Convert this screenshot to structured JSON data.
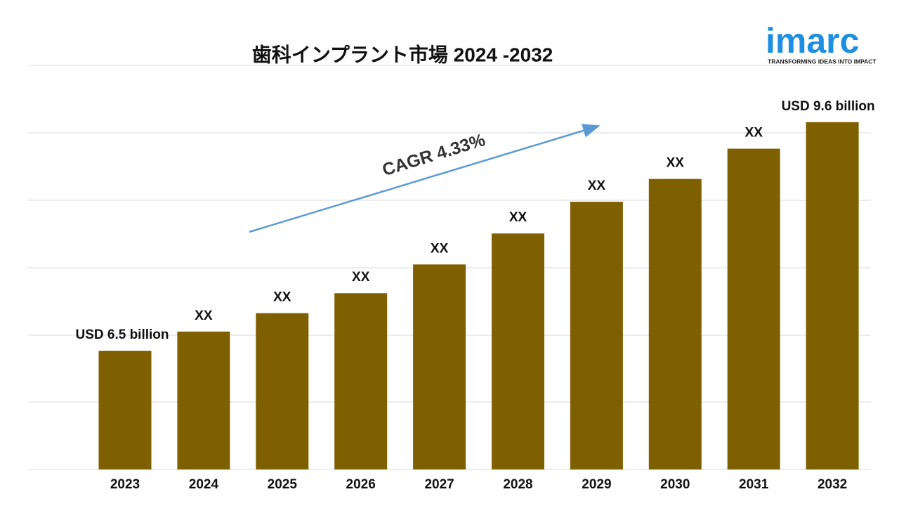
{
  "chart_data": {
    "type": "bar",
    "title": "歯科インプラント市場 2024 -2032",
    "categories": [
      "2023",
      "2024",
      "2025",
      "2026",
      "2027",
      "2028",
      "2029",
      "2030",
      "2031",
      "2032"
    ],
    "values": [
      6.5,
      6.76,
      7.01,
      7.28,
      7.67,
      8.09,
      8.52,
      8.83,
      9.24,
      9.6
    ],
    "value_labels": [
      "USD 6.5 billion",
      "XX",
      "XX",
      "XX",
      "XX",
      "XX",
      "XX",
      "XX",
      "XX",
      "USD 9.6 billion"
    ],
    "color": "#7f6000",
    "ylim": [
      4.89,
      10.37
    ],
    "annotation": "CAGR  4.33%",
    "logo": {
      "name": "imarc",
      "tagline": "TRANSFORMING IDEAS INTO IMPACT"
    }
  }
}
